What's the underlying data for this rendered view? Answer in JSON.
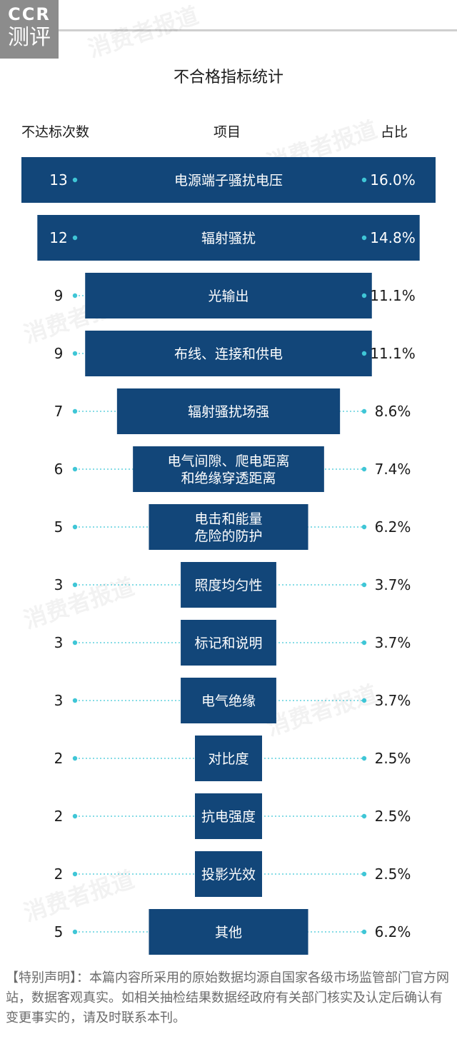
{
  "logo": {
    "line1": "CCR",
    "line2": "测评"
  },
  "watermark": "消费者报道",
  "colors": {
    "bar": "#124679",
    "dot": "#3fc6d6",
    "text": "#1b1b1b"
  },
  "chart_data": {
    "type": "bar",
    "title": "不合格指标统计",
    "headers": {
      "count": "不达标次数",
      "item": "项目",
      "share": "占比"
    },
    "categories": [
      "电源端子骚扰电压",
      "辐射骚扰",
      "光输出",
      "布线、连接和供电",
      "辐射骚扰场强",
      "电气间隙、爬电距离\n和绝缘穿透距离",
      "电击和能量\n危险的防护",
      "照度均匀性",
      "标记和说明",
      "电气绝缘",
      "对比度",
      "抗电强度",
      "投影光效",
      "其他"
    ],
    "counts": [
      13,
      12,
      9,
      9,
      7,
      6,
      5,
      3,
      3,
      3,
      2,
      2,
      2,
      5
    ],
    "shares": [
      "16.0%",
      "14.8%",
      "11.1%",
      "11.1%",
      "8.6%",
      "7.4%",
      "6.2%",
      "3.7%",
      "3.7%",
      "3.7%",
      "2.5%",
      "2.5%",
      "2.5%",
      "6.2%"
    ]
  },
  "footer": "【特别声明】：本篇内容所采用的原始数据均源自国家各级市场监管部门官方网站，数据客观真实。如相关抽检结果数据经政府有关部门核实及认定后确认有变更事实的，请及时联系本刊。"
}
